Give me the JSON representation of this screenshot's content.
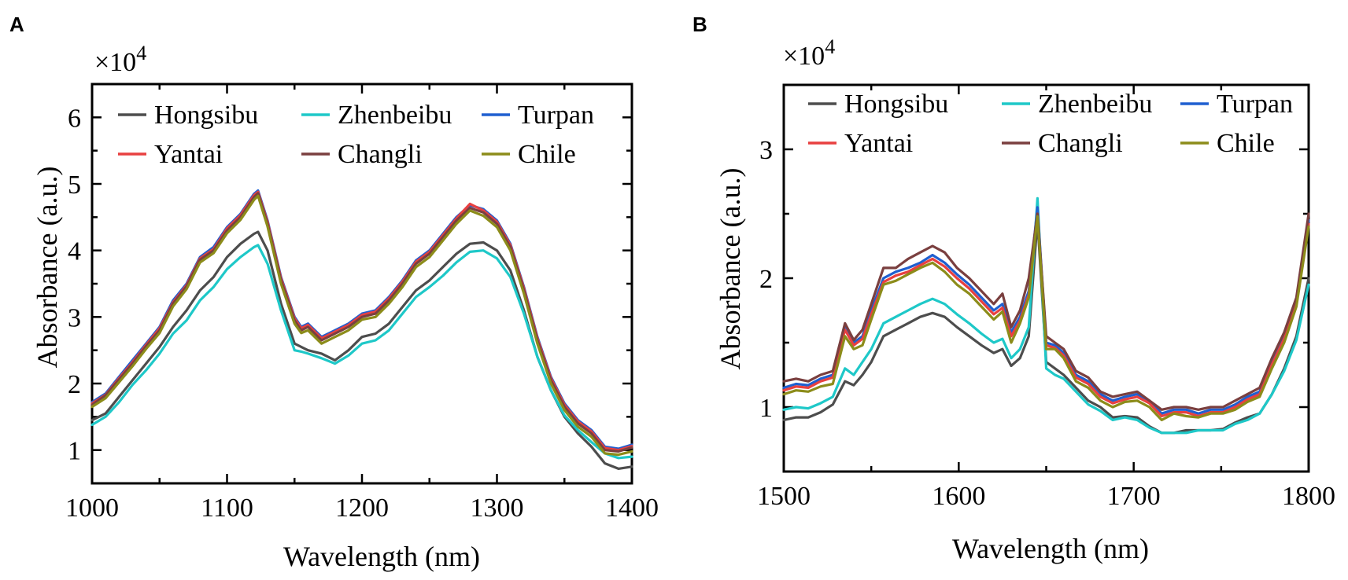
{
  "panels": [
    {
      "letter": "A",
      "exponent_base": "×10",
      "exponent_power": "4",
      "chart_data": {
        "type": "line",
        "xlabel": "Wavelength (nm)",
        "ylabel": "Absorbance (a.u.)",
        "xlim": [
          1000,
          1400
        ],
        "ylim": [
          0.5,
          6.5
        ],
        "xticks": [
          1000,
          1100,
          1200,
          1300,
          1400
        ],
        "xtick_labels": [
          "1000",
          "1100",
          "1200",
          "1300",
          "1400"
        ],
        "yticks": [
          1,
          2,
          3,
          4,
          5,
          6
        ],
        "ytick_labels": [
          "1",
          "2",
          "3",
          "4",
          "5",
          "6"
        ],
        "legend_position": "top",
        "x": [
          1000,
          1010,
          1020,
          1030,
          1040,
          1050,
          1060,
          1070,
          1080,
          1090,
          1100,
          1110,
          1120,
          1123,
          1130,
          1140,
          1150,
          1155,
          1160,
          1170,
          1180,
          1190,
          1200,
          1210,
          1220,
          1230,
          1240,
          1250,
          1260,
          1270,
          1280,
          1290,
          1300,
          1310,
          1320,
          1330,
          1340,
          1350,
          1360,
          1370,
          1380,
          1390,
          1400
        ],
        "series": [
          {
            "name": "Hongsibu",
            "color": "#4d4d4d",
            "values": [
              1.45,
              1.55,
              1.8,
              2.05,
              2.3,
              2.55,
              2.85,
              3.1,
              3.4,
              3.6,
              3.9,
              4.1,
              4.25,
              4.28,
              4.0,
              3.2,
              2.6,
              2.55,
              2.5,
              2.45,
              2.35,
              2.5,
              2.7,
              2.75,
              2.9,
              3.15,
              3.4,
              3.55,
              3.75,
              3.95,
              4.1,
              4.12,
              4.0,
              3.7,
              3.1,
              2.4,
              1.9,
              1.5,
              1.25,
              1.05,
              0.8,
              0.72,
              0.75
            ]
          },
          {
            "name": "Zhenbeibu",
            "color": "#1ec8c8",
            "values": [
              1.38,
              1.5,
              1.72,
              1.98,
              2.2,
              2.45,
              2.75,
              2.95,
              3.25,
              3.45,
              3.72,
              3.9,
              4.05,
              4.08,
              3.8,
              3.1,
              2.5,
              2.48,
              2.45,
              2.38,
              2.3,
              2.42,
              2.6,
              2.65,
              2.8,
              3.05,
              3.3,
              3.45,
              3.62,
              3.82,
              3.98,
              4.0,
              3.88,
              3.6,
              3.05,
              2.4,
              1.9,
              1.52,
              1.3,
              1.12,
              0.95,
              0.88,
              0.9
            ]
          },
          {
            "name": "Turpan",
            "color": "#1f5fd0",
            "values": [
              1.72,
              1.85,
              2.1,
              2.35,
              2.6,
              2.85,
              3.25,
              3.5,
              3.9,
              4.05,
              4.35,
              4.55,
              4.85,
              4.9,
              4.45,
              3.6,
              3.0,
              2.85,
              2.9,
              2.7,
              2.8,
              2.9,
              3.05,
              3.1,
              3.3,
              3.55,
              3.85,
              4.0,
              4.25,
              4.5,
              4.68,
              4.62,
              4.45,
              4.1,
              3.45,
              2.7,
              2.1,
              1.7,
              1.45,
              1.3,
              1.05,
              1.02,
              1.08
            ]
          },
          {
            "name": "Yantai",
            "color": "#e84040",
            "values": [
              1.7,
              1.83,
              2.08,
              2.32,
              2.58,
              2.83,
              3.22,
              3.48,
              3.88,
              4.02,
              4.33,
              4.53,
              4.83,
              4.88,
              4.43,
              3.58,
              2.98,
              2.83,
              2.88,
              2.68,
              2.78,
              2.88,
              3.03,
              3.08,
              3.28,
              3.53,
              3.83,
              3.98,
              4.23,
              4.48,
              4.7,
              4.6,
              4.43,
              4.08,
              3.43,
              2.68,
              2.08,
              1.68,
              1.43,
              1.28,
              1.03,
              1.0,
              1.06
            ]
          },
          {
            "name": "Changli",
            "color": "#7a3f3f",
            "values": [
              1.68,
              1.82,
              2.06,
              2.3,
              2.56,
              2.8,
              3.2,
              3.46,
              3.86,
              4.0,
              4.3,
              4.5,
              4.8,
              4.86,
              4.4,
              3.55,
              2.95,
              2.8,
              2.85,
              2.65,
              2.75,
              2.85,
              3.0,
              3.05,
              3.25,
              3.5,
              3.8,
              3.95,
              4.2,
              4.45,
              4.64,
              4.57,
              4.4,
              4.05,
              3.4,
              2.65,
              2.05,
              1.65,
              1.4,
              1.25,
              1.0,
              0.98,
              1.04
            ]
          },
          {
            "name": "Chile",
            "color": "#8c8c1a",
            "values": [
              1.65,
              1.78,
              2.02,
              2.26,
              2.52,
              2.76,
              3.16,
              3.42,
              3.82,
              3.96,
              4.26,
              4.46,
              4.76,
              4.82,
              4.36,
              3.5,
              2.9,
              2.76,
              2.8,
              2.6,
              2.7,
              2.8,
              2.96,
              3.0,
              3.2,
              3.45,
              3.75,
              3.9,
              4.15,
              4.4,
              4.6,
              4.52,
              4.35,
              4.0,
              3.35,
              2.6,
              2.0,
              1.6,
              1.35,
              1.2,
              0.95,
              0.93,
              0.98
            ]
          }
        ]
      }
    },
    {
      "letter": "B",
      "exponent_base": "×10",
      "exponent_power": "4",
      "chart_data": {
        "type": "line",
        "xlabel": "Wavelength (nm)",
        "ylabel": "Absorbance (a.u.)",
        "xlim": [
          1500,
          1800
        ],
        "ylim": [
          0.5,
          3.5
        ],
        "xticks": [
          1500,
          1600,
          1700,
          1800
        ],
        "xtick_labels": [
          "1500",
          "1600",
          "1700",
          "1800"
        ],
        "yticks": [
          1,
          2,
          3
        ],
        "ytick_labels": [
          "1",
          "2",
          "3"
        ],
        "legend_position": "top",
        "x": [
          1500,
          1507,
          1514,
          1521,
          1528,
          1535,
          1540,
          1545,
          1550,
          1557,
          1564,
          1571,
          1578,
          1585,
          1592,
          1599,
          1606,
          1613,
          1620,
          1625,
          1630,
          1635,
          1640,
          1645,
          1650,
          1655,
          1660,
          1667,
          1674,
          1681,
          1688,
          1695,
          1702,
          1709,
          1716,
          1723,
          1730,
          1737,
          1744,
          1751,
          1758,
          1765,
          1772,
          1779,
          1786,
          1793,
          1800
        ],
        "series": [
          {
            "name": "Hongsibu",
            "color": "#4d4d4d",
            "values": [
              0.9,
              0.92,
              0.92,
              0.96,
              1.02,
              1.2,
              1.17,
              1.25,
              1.35,
              1.55,
              1.6,
              1.65,
              1.7,
              1.73,
              1.7,
              1.62,
              1.55,
              1.48,
              1.42,
              1.45,
              1.32,
              1.38,
              1.55,
              2.45,
              1.35,
              1.3,
              1.25,
              1.15,
              1.05,
              1.0,
              0.92,
              0.93,
              0.92,
              0.85,
              0.8,
              0.8,
              0.82,
              0.82,
              0.82,
              0.83,
              0.88,
              0.92,
              0.95,
              1.1,
              1.3,
              1.55,
              2.0
            ]
          },
          {
            "name": "Zhenbeibu",
            "color": "#1ec8c8",
            "values": [
              0.98,
              1.0,
              0.99,
              1.03,
              1.08,
              1.3,
              1.25,
              1.35,
              1.45,
              1.65,
              1.7,
              1.75,
              1.8,
              1.84,
              1.8,
              1.72,
              1.65,
              1.57,
              1.5,
              1.53,
              1.38,
              1.45,
              1.62,
              2.62,
              1.3,
              1.25,
              1.22,
              1.12,
              1.02,
              0.97,
              0.9,
              0.92,
              0.9,
              0.84,
              0.8,
              0.8,
              0.8,
              0.82,
              0.82,
              0.82,
              0.87,
              0.9,
              0.95,
              1.1,
              1.28,
              1.52,
              1.95
            ]
          },
          {
            "name": "Turpan",
            "color": "#1f5fd0",
            "values": [
              1.15,
              1.18,
              1.17,
              1.22,
              1.25,
              1.62,
              1.5,
              1.55,
              1.75,
              2.0,
              2.05,
              2.08,
              2.12,
              2.18,
              2.12,
              2.03,
              1.95,
              1.85,
              1.75,
              1.8,
              1.58,
              1.7,
              1.9,
              2.55,
              1.5,
              1.48,
              1.42,
              1.25,
              1.2,
              1.1,
              1.05,
              1.08,
              1.1,
              1.05,
              0.95,
              0.98,
              0.98,
              0.95,
              0.98,
              0.98,
              1.02,
              1.08,
              1.12,
              1.35,
              1.55,
              1.82,
              2.45
            ]
          },
          {
            "name": "Yantai",
            "color": "#e84040",
            "values": [
              1.13,
              1.16,
              1.15,
              1.2,
              1.23,
              1.6,
              1.48,
              1.53,
              1.72,
              1.97,
              2.02,
              2.05,
              2.1,
              2.15,
              2.09,
              2.0,
              1.92,
              1.82,
              1.72,
              1.77,
              1.55,
              1.67,
              1.87,
              2.5,
              1.48,
              1.46,
              1.4,
              1.23,
              1.18,
              1.08,
              1.03,
              1.06,
              1.08,
              1.03,
              0.93,
              0.96,
              0.96,
              0.93,
              0.96,
              0.96,
              1.0,
              1.06,
              1.1,
              1.33,
              1.53,
              1.8,
              2.42
            ]
          },
          {
            "name": "Changli",
            "color": "#7a3f3f",
            "values": [
              1.2,
              1.22,
              1.2,
              1.25,
              1.28,
              1.65,
              1.52,
              1.6,
              1.8,
              2.08,
              2.08,
              2.15,
              2.2,
              2.25,
              2.2,
              2.08,
              2.0,
              1.9,
              1.8,
              1.88,
              1.62,
              1.75,
              2.0,
              2.5,
              1.55,
              1.5,
              1.45,
              1.28,
              1.23,
              1.12,
              1.08,
              1.1,
              1.12,
              1.05,
              0.98,
              1.0,
              1.0,
              0.98,
              1.0,
              1.0,
              1.05,
              1.1,
              1.15,
              1.38,
              1.58,
              1.85,
              2.5
            ]
          },
          {
            "name": "Chile",
            "color": "#8c8c1a",
            "values": [
              1.1,
              1.13,
              1.12,
              1.16,
              1.18,
              1.55,
              1.45,
              1.48,
              1.68,
              1.95,
              1.98,
              2.03,
              2.08,
              2.12,
              2.05,
              1.95,
              1.88,
              1.78,
              1.68,
              1.74,
              1.5,
              1.65,
              1.85,
              2.48,
              1.45,
              1.45,
              1.38,
              1.2,
              1.15,
              1.05,
              1.0,
              1.04,
              1.05,
              1.0,
              0.9,
              0.95,
              0.93,
              0.92,
              0.95,
              0.95,
              0.98,
              1.04,
              1.08,
              1.3,
              1.5,
              1.78,
              2.4
            ]
          }
        ]
      }
    }
  ]
}
